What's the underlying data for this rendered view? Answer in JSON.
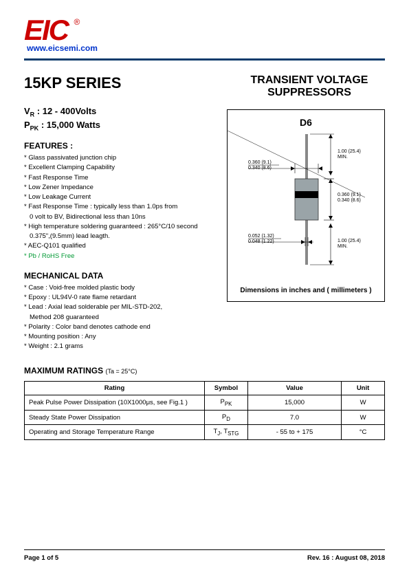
{
  "logo": {
    "text": "EIC",
    "url": "www.eicsemi.com",
    "reg": "®",
    "color": "#CC0000",
    "url_color": "#0033cc"
  },
  "series_title": "15KP SERIES",
  "product_title": "TRANSIENT VOLTAGE SUPPRESSORS",
  "specs": {
    "vr_label": "V",
    "vr_sub": "R",
    "vr_value": ": 12 - 400Volts",
    "ppk_label": "P",
    "ppk_sub": "PK",
    "ppk_value": ": 15,000 Watts"
  },
  "features": {
    "title": "FEATURES :",
    "items": [
      "* Glass passivated junction chip",
      "* Excellent Clamping Capability",
      "* Fast Response Time",
      "* Low Zener Impedance",
      "* Low Leakage Current",
      "* Fast Response Time : typically less than 1.0ps from\n  0 volt to BV, Bidirectional less than 10ns",
      "* High temperature soldering guaranteed : 265°C/10 second\n  0.375\",(9.5mm) lead leagth.",
      "* AEC-Q101 qualified"
    ],
    "green_item": "* Pb / RoHS Free"
  },
  "mechanical": {
    "title": "MECHANICAL DATA",
    "items": [
      "*  Case : Void-free molded plastic body",
      "*  Epoxy : UL94V-0 rate flame retardant",
      "*  Lead : Axial lead solderable per MIL-STD-202,\n               Method 208 guaranteed",
      "*  Polarity : Color band denotes cathode end",
      "*  Mounting  position : Any",
      "*  Weight :    2.1  grams"
    ]
  },
  "diagram": {
    "title": "D6",
    "caption": "Dimensions in inches and ( millimeters )",
    "body_color": "#9aa4a8",
    "band_color": "#000000",
    "dims": {
      "lead_w_top": "0.052 (1.32)",
      "lead_w_bot": "0.048 (1.22)",
      "body_w_top": "0.360 (9.1)",
      "body_w_bot": "0.340 (8.6)",
      "body_h_top": "0.360 (9.1)",
      "body_h_bot": "0.340 (8.6)",
      "lead_len_top": "1.00 (25.4)",
      "lead_len_bot": "MIN.",
      "lead_len2_top": "1.00 (25.4)",
      "lead_len2_bot": "MIN."
    }
  },
  "ratings": {
    "title": "MAXIMUM RATINGS",
    "sub": "(Ta = 25°C)",
    "headers": {
      "rating": "Rating",
      "symbol": "Symbol",
      "value": "Value",
      "unit": "Unit"
    },
    "col_widths": {
      "rating": "50%",
      "symbol": "12%",
      "value": "26%",
      "unit": "12%"
    },
    "rows": [
      {
        "rating": "Peak Pulse Power Dissipation (10X1000μs, see Fig.1 )",
        "symbol": "P<sub>PK</sub>",
        "value": "15,000",
        "unit": "W"
      },
      {
        "rating": "Steady State Power Dissipation",
        "symbol": "P<sub>D</sub>",
        "value": "7.0",
        "unit": "W"
      },
      {
        "rating": "Operating and Storage Temperature Range",
        "symbol": "T<sub>J</sub>, T<sub>STG</sub>",
        "value": "- 55 to + 175",
        "unit": "°C"
      }
    ]
  },
  "footer": {
    "page": "Page 1 of 5",
    "rev": "Rev. 16 : August 08, 2018"
  }
}
